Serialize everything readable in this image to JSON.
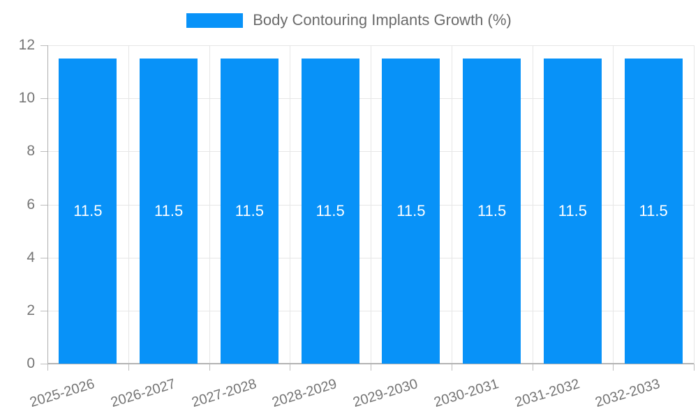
{
  "legend": {
    "label": "Body Contouring Implants Growth (%)"
  },
  "colors": {
    "bar": "#0892f8",
    "grid": "#e6e6e6",
    "axis": "#b0b0b0",
    "baseline": "#b3b3b3",
    "tick": "#bdbdbd",
    "axis_label": "#757575",
    "legend_text": "#6b6b6b",
    "value_label": "#ffffff",
    "background": "#ffffff"
  },
  "chart_data": {
    "type": "bar",
    "title": "Body Contouring Implants Growth (%)",
    "categories": [
      "2025-2026",
      "2026-2027",
      "2027-2028",
      "2028-2029",
      "2029-2030",
      "2030-2031",
      "2031-2032",
      "2032-2033"
    ],
    "values": [
      11.5,
      11.5,
      11.5,
      11.5,
      11.5,
      11.5,
      11.5,
      11.5
    ],
    "bar_labels": [
      "11.5",
      "11.5",
      "11.5",
      "11.5",
      "11.5",
      "11.5",
      "11.5",
      "11.5"
    ],
    "xlabel": "",
    "ylabel": "",
    "ylim": [
      0,
      12
    ],
    "yticks": [
      0,
      2,
      4,
      6,
      8,
      10,
      12
    ],
    "grid": true,
    "legend_position": "top-center",
    "value_labels_inside": true
  }
}
